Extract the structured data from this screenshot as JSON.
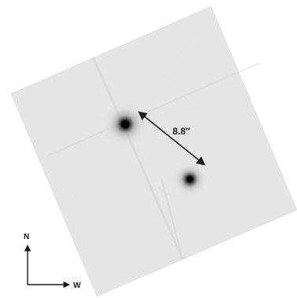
{
  "figure": {
    "separation_label": "8.8″",
    "compass": {
      "north_label": "N",
      "west_label": "W"
    },
    "sources": [
      {
        "name": "primary-source",
        "brightness": "brighter"
      },
      {
        "name": "secondary-source",
        "brightness": "fainter"
      }
    ],
    "colors": {
      "sky_background": "#e9e9e9",
      "source_core": "#0a0a0a",
      "annotation": "#1a1a1a"
    }
  }
}
